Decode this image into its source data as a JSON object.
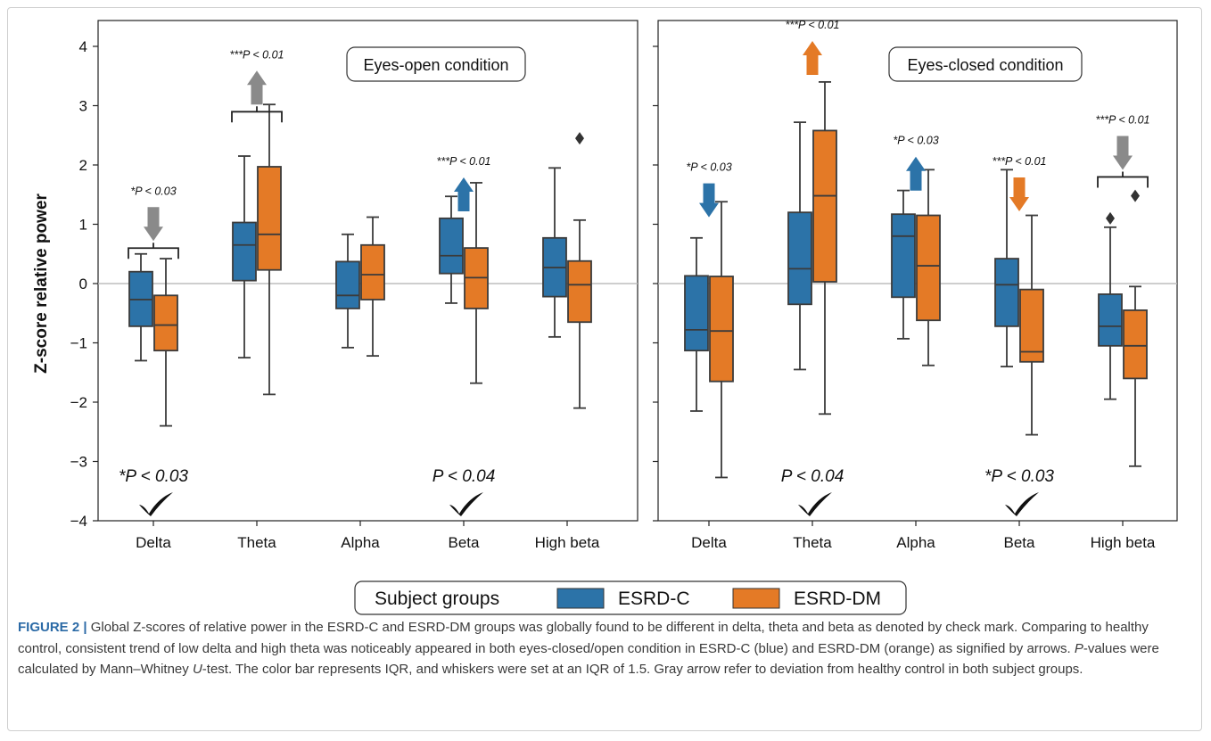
{
  "colors": {
    "esrd_c": "#2c73a8",
    "esrd_dm": "#e47a26",
    "gray_arrow": "#8a8a8a",
    "box_edge": "#3b3b3b"
  },
  "chart_data": {
    "type": "box",
    "ylabel": "Z-score relative power",
    "ylim": [
      -4,
      4
    ],
    "yticks": [
      "4",
      "3",
      "2",
      "1",
      "0",
      "−1",
      "−2",
      "−3",
      "−4"
    ],
    "ytick_values": [
      4,
      3,
      2,
      1,
      0,
      -1,
      -2,
      -3,
      -4
    ],
    "categories": [
      "Delta",
      "Theta",
      "Alpha",
      "Beta",
      "High beta"
    ],
    "legend": {
      "title": "Subject groups",
      "entries": [
        "ESRD-C",
        "ESRD-DM"
      ]
    },
    "panels": [
      {
        "title": "Eyes-open condition",
        "series": [
          {
            "name": "ESRD-C",
            "boxes": [
              {
                "low": -1.3,
                "q1": -0.72,
                "median": -0.27,
                "q3": 0.2,
                "high": 0.5,
                "outliers": []
              },
              {
                "low": -1.25,
                "q1": 0.05,
                "median": 0.65,
                "q3": 1.03,
                "high": 2.15,
                "outliers": []
              },
              {
                "low": -1.08,
                "q1": -0.42,
                "median": -0.2,
                "q3": 0.37,
                "high": 0.83,
                "outliers": []
              },
              {
                "low": -0.33,
                "q1": 0.17,
                "median": 0.47,
                "q3": 1.1,
                "high": 1.47,
                "outliers": []
              },
              {
                "low": -0.9,
                "q1": -0.22,
                "median": 0.27,
                "q3": 0.77,
                "high": 1.95,
                "outliers": []
              }
            ]
          },
          {
            "name": "ESRD-DM",
            "boxes": [
              {
                "low": -2.4,
                "q1": -1.13,
                "median": -0.7,
                "q3": -0.2,
                "high": 0.42,
                "outliers": []
              },
              {
                "low": -1.87,
                "q1": 0.23,
                "median": 0.83,
                "q3": 1.97,
                "high": 3.02,
                "outliers": []
              },
              {
                "low": -1.22,
                "q1": -0.27,
                "median": 0.15,
                "q3": 0.65,
                "high": 1.12,
                "outliers": []
              },
              {
                "low": -1.68,
                "q1": -0.42,
                "median": 0.1,
                "q3": 0.6,
                "high": 1.7,
                "outliers": []
              },
              {
                "low": -2.1,
                "q1": -0.65,
                "median": -0.02,
                "q3": 0.38,
                "high": 1.07,
                "outliers": [
                  2.45
                ]
              }
            ]
          }
        ],
        "annotations": [
          {
            "category": "Delta",
            "text": "*P < 0.03",
            "arrow": "down",
            "color": "gray",
            "bracket": true,
            "y": 1.5
          },
          {
            "category": "Theta",
            "text": "***P < 0.01",
            "arrow": "up",
            "color": "gray",
            "bracket": true,
            "y": 3.8
          },
          {
            "category": "Beta",
            "text": "***P < 0.01",
            "arrow": "up",
            "color": "blue",
            "bracket": false,
            "y": 2.0
          }
        ],
        "bottom_labels": [
          {
            "category": "Delta",
            "text": "*P < 0.03",
            "check": true
          },
          {
            "category": "Beta",
            "text": "P < 0.04",
            "check": true
          }
        ]
      },
      {
        "title": "Eyes-closed condition",
        "series": [
          {
            "name": "ESRD-C",
            "boxes": [
              {
                "low": -2.15,
                "q1": -1.13,
                "median": -0.78,
                "q3": 0.13,
                "high": 0.77,
                "outliers": []
              },
              {
                "low": -1.45,
                "q1": -0.35,
                "median": 0.25,
                "q3": 1.2,
                "high": 2.72,
                "outliers": []
              },
              {
                "low": -0.93,
                "q1": -0.23,
                "median": 0.8,
                "q3": 1.17,
                "high": 1.57,
                "outliers": []
              },
              {
                "low": -1.4,
                "q1": -0.72,
                "median": -0.02,
                "q3": 0.42,
                "high": 1.92,
                "outliers": []
              },
              {
                "low": -1.95,
                "q1": -1.05,
                "median": -0.72,
                "q3": -0.18,
                "high": 0.95,
                "outliers": [
                  1.1
                ]
              }
            ]
          },
          {
            "name": "ESRD-DM",
            "boxes": [
              {
                "low": -3.27,
                "q1": -1.65,
                "median": -0.8,
                "q3": 0.12,
                "high": 1.38,
                "outliers": []
              },
              {
                "low": -2.2,
                "q1": 0.03,
                "median": 1.48,
                "q3": 2.58,
                "high": 3.4,
                "outliers": []
              },
              {
                "low": -1.38,
                "q1": -0.62,
                "median": 0.3,
                "q3": 1.15,
                "high": 1.92,
                "outliers": []
              },
              {
                "low": -2.55,
                "q1": -1.32,
                "median": -1.15,
                "q3": -0.1,
                "high": 1.15,
                "outliers": []
              },
              {
                "low": -3.08,
                "q1": -1.6,
                "median": -1.05,
                "q3": -0.45,
                "high": -0.05,
                "outliers": [
                  1.48
                ]
              }
            ]
          }
        ],
        "annotations": [
          {
            "category": "Delta",
            "text": "*P < 0.03",
            "arrow": "down",
            "color": "blue",
            "bracket": false,
            "y": 1.9
          },
          {
            "category": "Theta",
            "text": "***P < 0.01",
            "arrow": "up",
            "color": "orange",
            "bracket": false,
            "y": 4.3
          },
          {
            "category": "Alpha",
            "text": "*P < 0.03",
            "arrow": "up",
            "color": "blue",
            "bracket": false,
            "y": 2.35
          },
          {
            "category": "Beta",
            "text": "***P < 0.01",
            "arrow": "down",
            "color": "orange",
            "bracket": false,
            "y": 2.0
          },
          {
            "category": "High beta",
            "text": "***P < 0.01",
            "arrow": "down",
            "color": "gray",
            "bracket": true,
            "y": 2.7
          }
        ],
        "bottom_labels": [
          {
            "category": "Theta",
            "text": "P < 0.04",
            "check": true
          },
          {
            "category": "Beta",
            "text": "*P < 0.03",
            "check": true
          }
        ]
      }
    ]
  },
  "caption": {
    "label": "FIGURE 2 |",
    "text_1": " Global Z-scores of relative power in the ESRD-C and ESRD-DM groups was globally found to be different in delta, theta and beta as denoted by check mark. Comparing to healthy control, consistent trend of low delta and high theta was noticeably appeared in both eyes-closed/open condition in ESRD-C (blue) and ESRD-DM (orange) as signified by arrows. ",
    "p_letter": "P",
    "text_2": "-values were calculated by Mann–Whitney ",
    "u_letter": "U",
    "text_3": "-test. The color bar represents IQR, and whiskers were set at an IQR of 1.5. Gray arrow refer to deviation from healthy control in both subject groups."
  }
}
